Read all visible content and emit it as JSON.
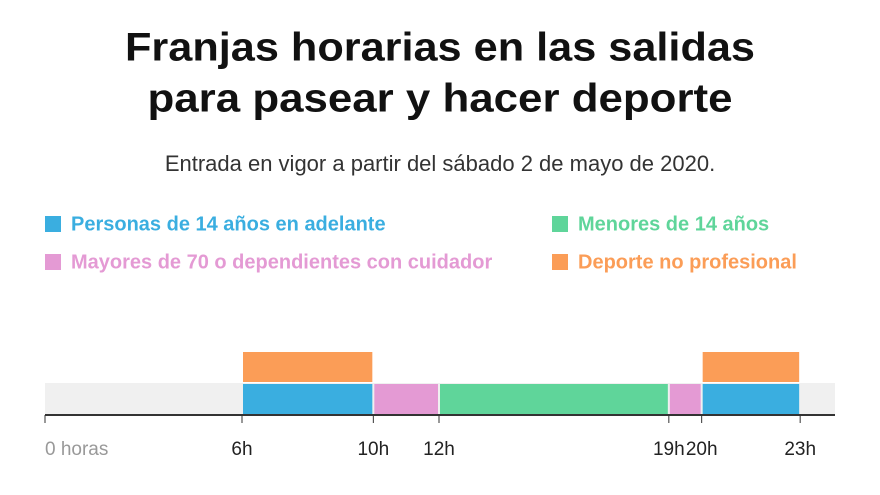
{
  "chart_data": {
    "type": "timeline",
    "title": [
      "Franjas horarias en las salidas",
      "para pasear y hacer deporte"
    ],
    "subtitle": "Entrada en vigor a partir del sábado 2 de mayo de 2020.",
    "series": [
      {
        "name": "Personas de 14 años en adelante",
        "color": "#3aaee0",
        "values": [
          [
            6,
            10
          ],
          [
            20,
            23
          ]
        ]
      },
      {
        "name": "Menores de 14 años",
        "color": "#5fd59a",
        "values": [
          [
            12,
            19
          ]
        ]
      },
      {
        "name": "Mayores de 70 o dependientes con cuidador",
        "color": "#e49ad4",
        "values": [
          [
            10,
            12
          ],
          [
            19,
            20
          ]
        ]
      },
      {
        "name": "Deporte no profesional",
        "color": "#fb9d57",
        "values": [
          [
            6,
            10
          ],
          [
            20,
            23
          ]
        ]
      }
    ],
    "xlim": [
      0,
      24
    ],
    "xticks": [
      {
        "value": 0,
        "label": "0 horas"
      },
      {
        "value": 6,
        "label": "6h"
      },
      {
        "value": 10,
        "label": "10h"
      },
      {
        "value": 12,
        "label": "12h"
      },
      {
        "value": 19,
        "label": "19h"
      },
      {
        "value": 20,
        "label": "20h"
      },
      {
        "value": 23,
        "label": "23h"
      }
    ]
  }
}
